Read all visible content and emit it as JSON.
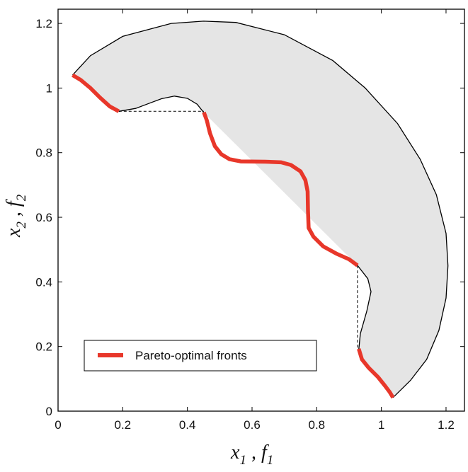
{
  "chart_data": {
    "type": "area",
    "title": "",
    "xlabel": {
      "main": "x",
      "sub": "1",
      "sep": " , ",
      "main2": "f",
      "sub2": "1"
    },
    "ylabel": {
      "main": "x",
      "sub": "2",
      "sep": " , ",
      "main2": "f",
      "sub2": "2"
    },
    "xlim": [
      0,
      1.257
    ],
    "ylim": [
      0,
      1.244
    ],
    "xticks": [
      "0",
      "0.2",
      "0.4",
      "0.6",
      "0.8",
      "1",
      "1.2"
    ],
    "yticks": [
      "0",
      "0.2",
      "0.4",
      "0.6",
      "0.8",
      "1",
      "1.2"
    ],
    "grid": false,
    "legend": {
      "position": "bottom-left",
      "entries": [
        "Pareto-optimal fronts"
      ]
    },
    "colors": {
      "region_fill": "#e5e5e5",
      "front": "#e8372a",
      "outline": "#000000"
    },
    "feasible_region": {
      "outer_boundary": [
        [
          0.045,
          1.04
        ],
        [
          0.1,
          1.1
        ],
        [
          0.2,
          1.16
        ],
        [
          0.35,
          1.2
        ],
        [
          0.45,
          1.207
        ],
        [
          0.55,
          1.203
        ],
        [
          0.7,
          1.165
        ],
        [
          0.85,
          1.085
        ],
        [
          0.95,
          1.0
        ],
        [
          1.05,
          0.89
        ],
        [
          1.12,
          0.78
        ],
        [
          1.17,
          0.67
        ],
        [
          1.2,
          0.55
        ],
        [
          1.206,
          0.45
        ],
        [
          1.2,
          0.35
        ],
        [
          1.178,
          0.25
        ],
        [
          1.14,
          0.16
        ],
        [
          1.09,
          0.095
        ],
        [
          1.036,
          0.042
        ]
      ],
      "inner_boundary": [
        [
          0.93,
          0.19
        ],
        [
          0.935,
          0.24
        ],
        [
          0.955,
          0.31
        ],
        [
          0.968,
          0.37
        ],
        [
          0.958,
          0.41
        ],
        [
          0.926,
          0.451
        ],
        [
          0.45,
          0.925
        ],
        [
          0.43,
          0.95
        ],
        [
          0.4,
          0.968
        ],
        [
          0.36,
          0.975
        ],
        [
          0.32,
          0.967
        ],
        [
          0.28,
          0.952
        ],
        [
          0.24,
          0.937
        ],
        [
          0.188,
          0.928
        ]
      ]
    },
    "series": [
      {
        "name": "Pareto-optimal fronts",
        "segments": [
          [
            [
              0.045,
              1.04
            ],
            [
              0.07,
              1.025
            ],
            [
              0.1,
              1.0
            ],
            [
              0.13,
              0.97
            ],
            [
              0.16,
              0.943
            ],
            [
              0.188,
              0.928
            ]
          ],
          [
            [
              0.451,
              0.925
            ],
            [
              0.46,
              0.9
            ],
            [
              0.47,
              0.86
            ],
            [
              0.485,
              0.82
            ],
            [
              0.505,
              0.795
            ],
            [
              0.53,
              0.78
            ],
            [
              0.565,
              0.773
            ],
            [
              0.64,
              0.772
            ],
            [
              0.69,
              0.77
            ],
            [
              0.72,
              0.762
            ],
            [
              0.75,
              0.742
            ],
            [
              0.765,
              0.715
            ],
            [
              0.772,
              0.68
            ],
            [
              0.773,
              0.62
            ],
            [
              0.775,
              0.567
            ],
            [
              0.79,
              0.54
            ],
            [
              0.82,
              0.51
            ],
            [
              0.86,
              0.488
            ],
            [
              0.9,
              0.47
            ],
            [
              0.926,
              0.451
            ]
          ],
          [
            [
              0.93,
              0.193
            ],
            [
              0.94,
              0.16
            ],
            [
              0.96,
              0.135
            ],
            [
              0.99,
              0.105
            ],
            [
              1.01,
              0.08
            ],
            [
              1.025,
              0.06
            ],
            [
              1.036,
              0.042
            ]
          ]
        ]
      }
    ],
    "dashed_connectors": [
      [
        [
          0.188,
          0.928
        ],
        [
          0.451,
          0.928
        ]
      ],
      [
        [
          0.926,
          0.451
        ],
        [
          0.926,
          0.193
        ]
      ]
    ]
  }
}
